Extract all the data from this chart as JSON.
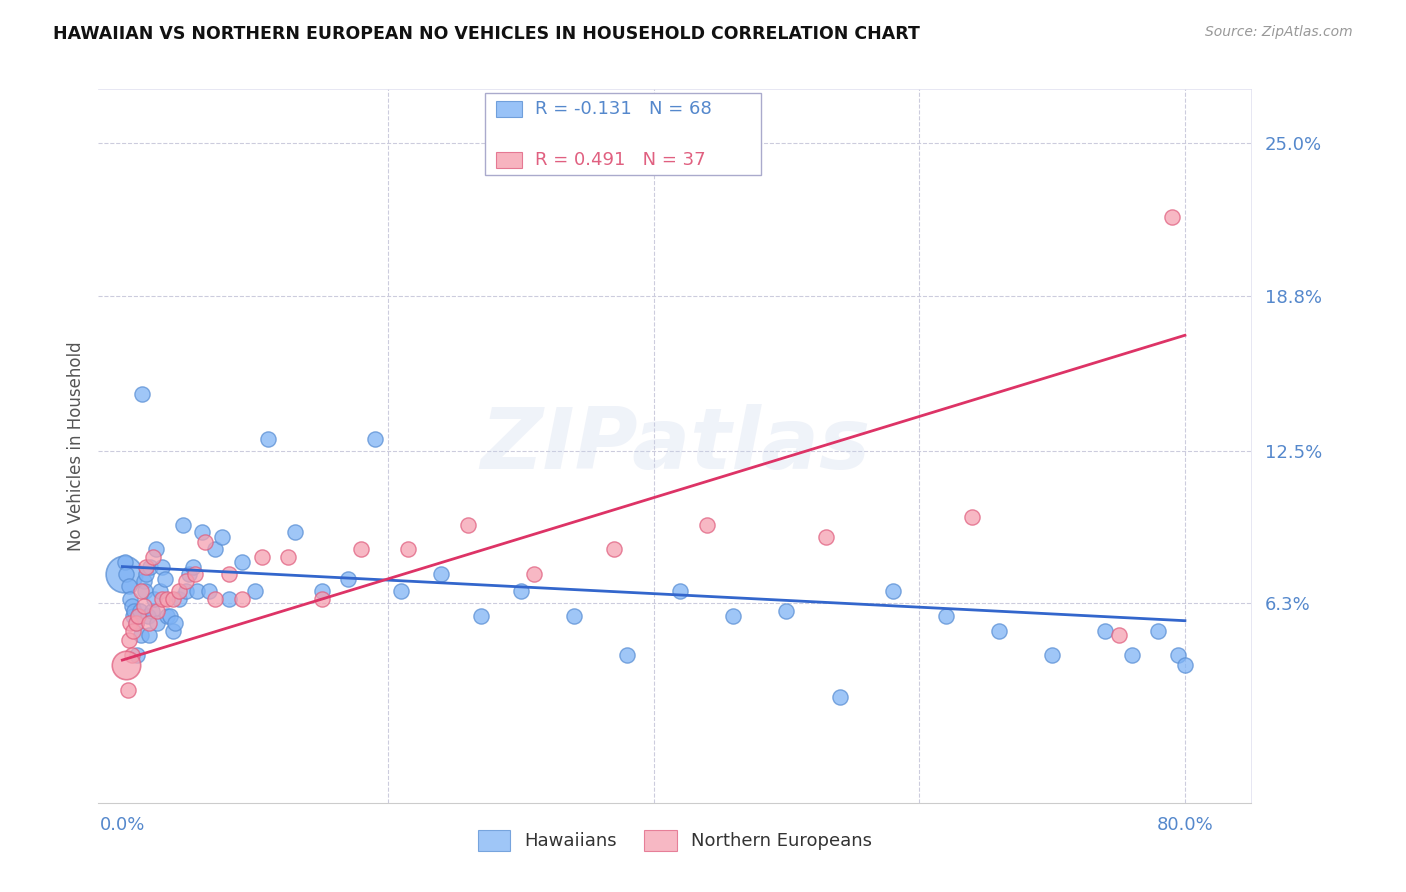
{
  "title": "HAWAIIAN VS NORTHERN EUROPEAN NO VEHICLES IN HOUSEHOLD CORRELATION CHART",
  "source": "Source: ZipAtlas.com",
  "ylabel": "No Vehicles in Household",
  "ytick_vals": [
    0.063,
    0.125,
    0.188,
    0.25
  ],
  "ytick_labels": [
    "6.3%",
    "12.5%",
    "18.8%",
    "25.0%"
  ],
  "xtick_vals": [
    0.0,
    0.8
  ],
  "xtick_labels": [
    "0.0%",
    "80.0%"
  ],
  "xlim": [
    -0.018,
    0.85
  ],
  "ylim": [
    -0.018,
    0.272
  ],
  "blue_color": "#7fb3f5",
  "blue_edge_color": "#5a8fd4",
  "pink_color": "#f5a0b0",
  "pink_edge_color": "#e06080",
  "blue_trend_color": "#3366cc",
  "pink_trend_color": "#dd3366",
  "blue_R": -0.131,
  "blue_N": 68,
  "pink_R": 0.491,
  "pink_N": 37,
  "blue_label": "Hawaiians",
  "pink_label": "Northern Europeans",
  "watermark": "ZIPatlas",
  "dot_size": 120,
  "large_dot_size": 700,
  "hawaiians_x": [
    0.002,
    0.003,
    0.005,
    0.006,
    0.007,
    0.008,
    0.009,
    0.01,
    0.011,
    0.012,
    0.013,
    0.014,
    0.015,
    0.016,
    0.017,
    0.018,
    0.019,
    0.02,
    0.021,
    0.022,
    0.024,
    0.025,
    0.026,
    0.028,
    0.03,
    0.032,
    0.034,
    0.036,
    0.038,
    0.04,
    0.043,
    0.046,
    0.048,
    0.05,
    0.053,
    0.056,
    0.06,
    0.065,
    0.07,
    0.075,
    0.08,
    0.09,
    0.1,
    0.11,
    0.13,
    0.15,
    0.17,
    0.19,
    0.21,
    0.24,
    0.27,
    0.3,
    0.34,
    0.38,
    0.42,
    0.46,
    0.5,
    0.54,
    0.58,
    0.62,
    0.66,
    0.7,
    0.74,
    0.76,
    0.78,
    0.795,
    0.8,
    0.001
  ],
  "hawaiians_y": [
    0.08,
    0.075,
    0.07,
    0.065,
    0.062,
    0.058,
    0.06,
    0.055,
    0.042,
    0.058,
    0.06,
    0.05,
    0.148,
    0.072,
    0.068,
    0.075,
    0.058,
    0.05,
    0.078,
    0.06,
    0.065,
    0.085,
    0.055,
    0.068,
    0.078,
    0.073,
    0.058,
    0.058,
    0.052,
    0.055,
    0.065,
    0.095,
    0.068,
    0.075,
    0.078,
    0.068,
    0.092,
    0.068,
    0.085,
    0.09,
    0.065,
    0.08,
    0.068,
    0.13,
    0.092,
    0.068,
    0.073,
    0.13,
    0.068,
    0.075,
    0.058,
    0.068,
    0.058,
    0.042,
    0.068,
    0.058,
    0.06,
    0.025,
    0.068,
    0.058,
    0.052,
    0.042,
    0.052,
    0.042,
    0.052,
    0.042,
    0.038,
    0.075
  ],
  "ne_x": [
    0.003,
    0.004,
    0.005,
    0.006,
    0.007,
    0.008,
    0.01,
    0.012,
    0.014,
    0.016,
    0.018,
    0.02,
    0.023,
    0.026,
    0.03,
    0.034,
    0.038,
    0.043,
    0.048,
    0.055,
    0.062,
    0.07,
    0.08,
    0.09,
    0.105,
    0.125,
    0.15,
    0.18,
    0.215,
    0.26,
    0.31,
    0.37,
    0.44,
    0.53,
    0.64,
    0.75,
    0.79
  ],
  "ne_y": [
    0.038,
    0.028,
    0.048,
    0.055,
    0.042,
    0.052,
    0.055,
    0.058,
    0.068,
    0.062,
    0.078,
    0.055,
    0.082,
    0.06,
    0.065,
    0.065,
    0.065,
    0.068,
    0.072,
    0.075,
    0.088,
    0.065,
    0.075,
    0.065,
    0.082,
    0.082,
    0.065,
    0.085,
    0.085,
    0.095,
    0.075,
    0.085,
    0.095,
    0.09,
    0.098,
    0.05,
    0.22
  ]
}
